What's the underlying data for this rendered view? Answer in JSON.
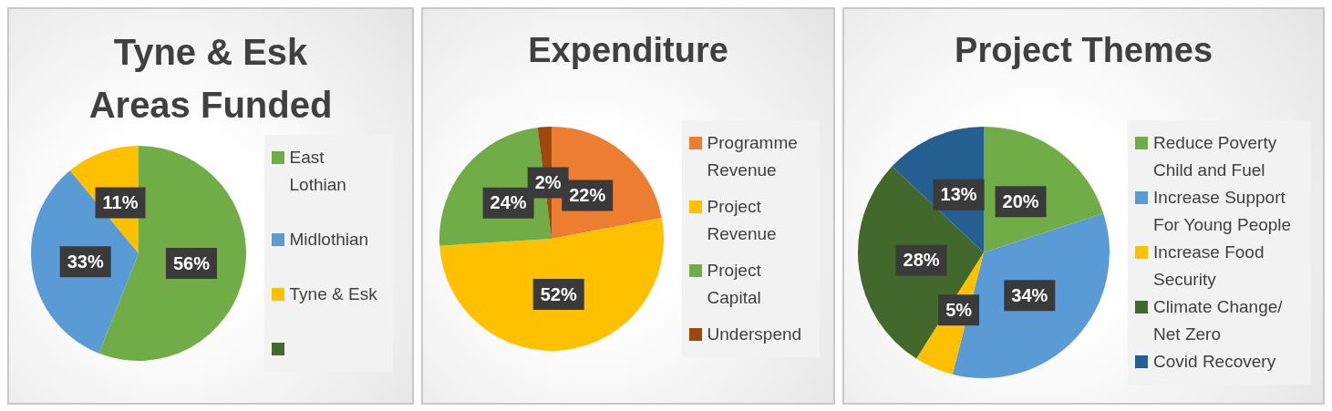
{
  "chart_data": [
    {
      "type": "pie",
      "title": "Tyne & Esk Areas Funded",
      "categories": [
        "East Lothian",
        "Midlothian",
        "Tyne & Esk",
        null
      ],
      "values": [
        56,
        33,
        11,
        0
      ],
      "colors": [
        "#70ad47",
        "#5b9bd5",
        "#ffc000",
        "#43682b"
      ],
      "value_labels": [
        "56%",
        "33%",
        "11%",
        null
      ],
      "legend": "right"
    },
    {
      "type": "pie",
      "title": "Expenditure",
      "categories": [
        "Programme Revenue",
        "Project Revenue",
        "Project Capital",
        "Underspend"
      ],
      "values": [
        22,
        52,
        24,
        2
      ],
      "colors": [
        "#ed7d31",
        "#ffc000",
        "#70ad47",
        "#9e480e"
      ],
      "value_labels": [
        "22%",
        "52%",
        "24%",
        "2%"
      ],
      "legend": "right"
    },
    {
      "type": "pie",
      "title": "Project Themes",
      "categories": [
        "Reduce Poverty Child and Fuel",
        "Increase Support For Young People",
        "Increase Food Security",
        "Climate Change/ Net Zero",
        "Covid Recovery"
      ],
      "values": [
        20,
        34,
        5,
        28,
        13
      ],
      "colors": [
        "#70ad47",
        "#5b9bd5",
        "#ffc000",
        "#43682b",
        "#255e91"
      ],
      "value_labels": [
        "20%",
        "34%",
        "5%",
        "28%",
        "13%"
      ],
      "legend": "right"
    }
  ]
}
